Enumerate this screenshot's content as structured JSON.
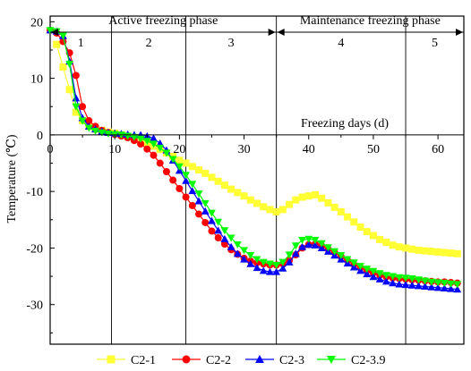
{
  "chart_data": {
    "type": "line",
    "xlabel": "Freezing days (d)",
    "ylabel": "Temperature (℃)",
    "xlim": [
      0,
      64
    ],
    "ylim": [
      -37,
      21
    ],
    "x_ticks": [
      0,
      10,
      20,
      30,
      40,
      50,
      60
    ],
    "y_ticks": [
      20,
      10,
      0,
      -10,
      -20,
      -30
    ],
    "grid": false,
    "legend_position": "bottom",
    "phases": [
      {
        "label": "Active freezing phase",
        "start": 0,
        "end": 35
      },
      {
        "label": "Maintenance freezing phase",
        "start": 35,
        "end": 64
      }
    ],
    "stages": [
      {
        "label": "1",
        "start": 0,
        "end": 9.5
      },
      {
        "label": "2",
        "start": 9.5,
        "end": 21
      },
      {
        "label": "3",
        "start": 21,
        "end": 35
      },
      {
        "label": "4",
        "start": 35,
        "end": 55
      },
      {
        "label": "5",
        "start": 55,
        "end": 64
      }
    ],
    "stage_boundaries": [
      9.5,
      21,
      35,
      55
    ],
    "series": [
      {
        "name": "C2-1",
        "color": "#ffff33",
        "marker": "square",
        "x": [
          1,
          2,
          3,
          4,
          5,
          6,
          7,
          8,
          9,
          10,
          11,
          12,
          13,
          14,
          15,
          16,
          17,
          18,
          19,
          20,
          21,
          22,
          23,
          24,
          25,
          26,
          27,
          28,
          29,
          30,
          31,
          32,
          33,
          34,
          35,
          36,
          37,
          38,
          39,
          40,
          41,
          42,
          43,
          44,
          45,
          46,
          47,
          48,
          49,
          50,
          51,
          52,
          53,
          54,
          55,
          56,
          57,
          58,
          59,
          60,
          61,
          62,
          63
        ],
        "values": [
          16,
          12,
          8,
          4,
          2.5,
          1.5,
          1,
          0.8,
          0.5,
          0.3,
          0,
          -0.3,
          -0.6,
          -1,
          -1.5,
          -2,
          -2.6,
          -3.2,
          -3.8,
          -4.5,
          -5,
          -5.6,
          -6.2,
          -6.8,
          -7.5,
          -8.2,
          -8.9,
          -9.6,
          -10.2,
          -10.8,
          -11.5,
          -12.1,
          -12.7,
          -13.2,
          -13.6,
          -13.2,
          -12.3,
          -11.5,
          -11,
          -10.8,
          -10.6,
          -11.2,
          -12,
          -12.8,
          -13.6,
          -14.5,
          -15.4,
          -16.3,
          -17.1,
          -17.8,
          -18.5,
          -19,
          -19.5,
          -19.8,
          -20,
          -20.2,
          -20.4,
          -20.5,
          -20.6,
          -20.7,
          -20.8,
          -20.9,
          -21
        ]
      },
      {
        "name": "C2-2",
        "color": "#ff0000",
        "marker": "circle",
        "x": [
          0,
          1,
          2,
          3,
          4,
          5,
          6,
          7,
          8,
          9,
          10,
          11,
          12,
          13,
          14,
          15,
          16,
          17,
          18,
          19,
          20,
          21,
          22,
          23,
          24,
          25,
          26,
          27,
          28,
          29,
          30,
          31,
          32,
          33,
          34,
          35,
          36,
          37,
          38,
          39,
          40,
          41,
          42,
          43,
          44,
          45,
          46,
          47,
          48,
          49,
          50,
          51,
          52,
          53,
          54,
          55,
          56,
          57,
          58,
          59,
          60,
          61,
          62,
          63
        ],
        "values": [
          18.5,
          18,
          16.5,
          14.5,
          10.5,
          5,
          2.5,
          1.5,
          0.8,
          0.4,
          0.1,
          -0.2,
          -0.5,
          -1,
          -1.6,
          -2.5,
          -3.6,
          -5,
          -6.5,
          -8,
          -9.5,
          -11,
          -12.5,
          -14,
          -15.5,
          -17,
          -18.2,
          -19.3,
          -20.3,
          -21.1,
          -21.8,
          -22.3,
          -22.6,
          -22.8,
          -23,
          -23,
          -22.8,
          -22.2,
          -21.2,
          -20,
          -19.4,
          -19.3,
          -19.6,
          -20.2,
          -20.8,
          -21.5,
          -22.2,
          -22.9,
          -23.5,
          -24,
          -24.4,
          -24.8,
          -25.1,
          -25.3,
          -25.4,
          -25.5,
          -25.6,
          -25.7,
          -25.8,
          -25.9,
          -26,
          -26,
          -26.1,
          -26.2
        ]
      },
      {
        "name": "C2-3",
        "color": "#0000ff",
        "marker": "triangle-up",
        "x": [
          0,
          1,
          2,
          3,
          4,
          5,
          6,
          7,
          8,
          9,
          10,
          11,
          12,
          13,
          14,
          15,
          16,
          17,
          18,
          19,
          20,
          21,
          22,
          23,
          24,
          25,
          26,
          27,
          28,
          29,
          30,
          31,
          32,
          33,
          34,
          35,
          36,
          37,
          38,
          39,
          40,
          41,
          42,
          43,
          44,
          45,
          46,
          47,
          48,
          49,
          50,
          51,
          52,
          53,
          54,
          55,
          56,
          57,
          58,
          59,
          60,
          61,
          62,
          63
        ],
        "values": [
          18.5,
          18.3,
          17.5,
          13,
          6.5,
          3,
          1.5,
          1,
          0.6,
          0.4,
          0.3,
          0.2,
          0.1,
          0,
          0,
          -0.2,
          -0.6,
          -1.5,
          -2.7,
          -4.5,
          -6.3,
          -8.1,
          -9.9,
          -11.7,
          -13.5,
          -15.2,
          -16.9,
          -18.4,
          -19.8,
          -21,
          -22,
          -22.8,
          -23.5,
          -24,
          -24.2,
          -24.2,
          -23.6,
          -22.5,
          -21,
          -19.8,
          -19.4,
          -19.5,
          -20,
          -20.6,
          -21.3,
          -22,
          -22.7,
          -23.4,
          -24,
          -24.6,
          -25.1,
          -25.5,
          -25.9,
          -26.2,
          -26.4,
          -26.5,
          -26.6,
          -26.7,
          -26.8,
          -26.9,
          -27,
          -27.1,
          -27.2,
          -27.3
        ]
      },
      {
        "name": "C2-3.9",
        "color": "#00ff00",
        "marker": "triangle-down",
        "x": [
          0,
          1,
          2,
          3,
          4,
          5,
          6,
          7,
          8,
          9,
          10,
          11,
          12,
          13,
          14,
          15,
          16,
          17,
          18,
          19,
          20,
          21,
          22,
          23,
          24,
          25,
          26,
          27,
          28,
          29,
          30,
          31,
          32,
          33,
          34,
          35,
          36,
          37,
          38,
          39,
          40,
          41,
          42,
          43,
          44,
          45,
          46,
          47,
          48,
          49,
          50,
          51,
          52,
          53,
          54,
          55,
          56,
          57,
          58,
          59,
          60,
          61,
          62,
          63
        ],
        "values": [
          18.5,
          18.3,
          17.5,
          12.5,
          5,
          2.5,
          1.2,
          0.7,
          0.4,
          0.2,
          0.1,
          0,
          -0.2,
          -0.4,
          -0.7,
          -1.1,
          -1.6,
          -2.3,
          -3.2,
          -4.3,
          -5.6,
          -7.1,
          -8.7,
          -10.4,
          -12.1,
          -13.8,
          -15.4,
          -16.9,
          -18.2,
          -19.4,
          -20.4,
          -21.3,
          -22,
          -22.5,
          -22.8,
          -23,
          -22.5,
          -21.2,
          -19.6,
          -18.6,
          -18.4,
          -18.6,
          -19.2,
          -19.9,
          -20.6,
          -21.3,
          -22,
          -22.6,
          -23.2,
          -23.7,
          -24.1,
          -24.5,
          -24.8,
          -25,
          -25.2,
          -25.3,
          -25.4,
          -25.6,
          -25.8,
          -26,
          -26.1,
          -26.2,
          -26.3,
          -26.4
        ]
      }
    ]
  }
}
